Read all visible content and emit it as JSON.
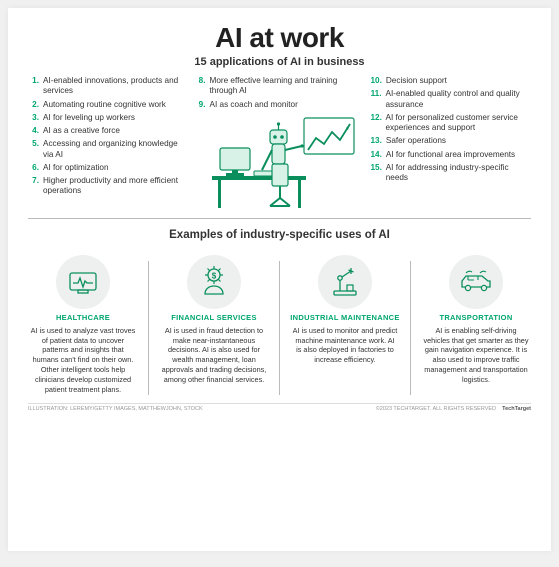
{
  "palette": {
    "accent": "#00a66e",
    "text": "#333333",
    "icon_bg": "#eef0ef",
    "separator": "#bbbbbb",
    "card_bg": "#ffffff",
    "page_bg": "#f0f0f0"
  },
  "header": {
    "title": "AI at work",
    "subtitle": "15 applications of AI in business"
  },
  "applications": {
    "col1": [
      {
        "n": "1.",
        "t": "AI-enabled innovations, products and services"
      },
      {
        "n": "2.",
        "t": "Automating routine cognitive work"
      },
      {
        "n": "3.",
        "t": "AI for leveling up workers"
      },
      {
        "n": "4.",
        "t": "AI as a creative force"
      },
      {
        "n": "5.",
        "t": "Accessing and organizing knowledge via AI"
      },
      {
        "n": "6.",
        "t": "AI for optimization"
      },
      {
        "n": "7.",
        "t": "Higher productivity and more efficient operations"
      }
    ],
    "col2": [
      {
        "n": "8.",
        "t": "More effective learning and training through AI"
      },
      {
        "n": "9.",
        "t": "AI as coach and monitor"
      }
    ],
    "col3": [
      {
        "n": "10.",
        "t": "Decision support"
      },
      {
        "n": "11.",
        "t": "AI-enabled quality control and quality assurance"
      },
      {
        "n": "12.",
        "t": "AI for personalized customer service experiences and support"
      },
      {
        "n": "13.",
        "t": "Safer operations"
      },
      {
        "n": "14.",
        "t": "AI for functional area improvements"
      },
      {
        "n": "15.",
        "t": "AI for addressing industry-specific needs"
      }
    ]
  },
  "industries_header": "Examples of industry-specific uses of AI",
  "industries": [
    {
      "label": "HEALTHCARE",
      "text": "AI is used to analyze vast troves of patient data to uncover patterns and insights that humans can't find on their own. Other intelligent tools help clinicians develop customized patient treatment plans."
    },
    {
      "label": "FINANCIAL SERVICES",
      "text": "AI is used in fraud detection to make near-instantaneous decisions. AI is also used for wealth management, loan approvals and trading decisions, among other financial services."
    },
    {
      "label": "INDUSTRIAL MAINTENANCE",
      "text": "AI is used to monitor and predict machine maintenance work. AI is also deployed in factories to increase efficiency."
    },
    {
      "label": "TRANSPORTATION",
      "text": "AI is enabling self-driving vehicles that get smarter as they gain navigation experience. It is also used to improve traffic management and transportation logistics."
    }
  ],
  "footer": {
    "left": "ILLUSTRATION: LEREMY/GETTY IMAGES, MATTHEWJOHN, STOCK",
    "right_copyright": "©2023 TECHTARGET. ALL RIGHTS RESERVED",
    "right_brand": "TechTarget"
  }
}
